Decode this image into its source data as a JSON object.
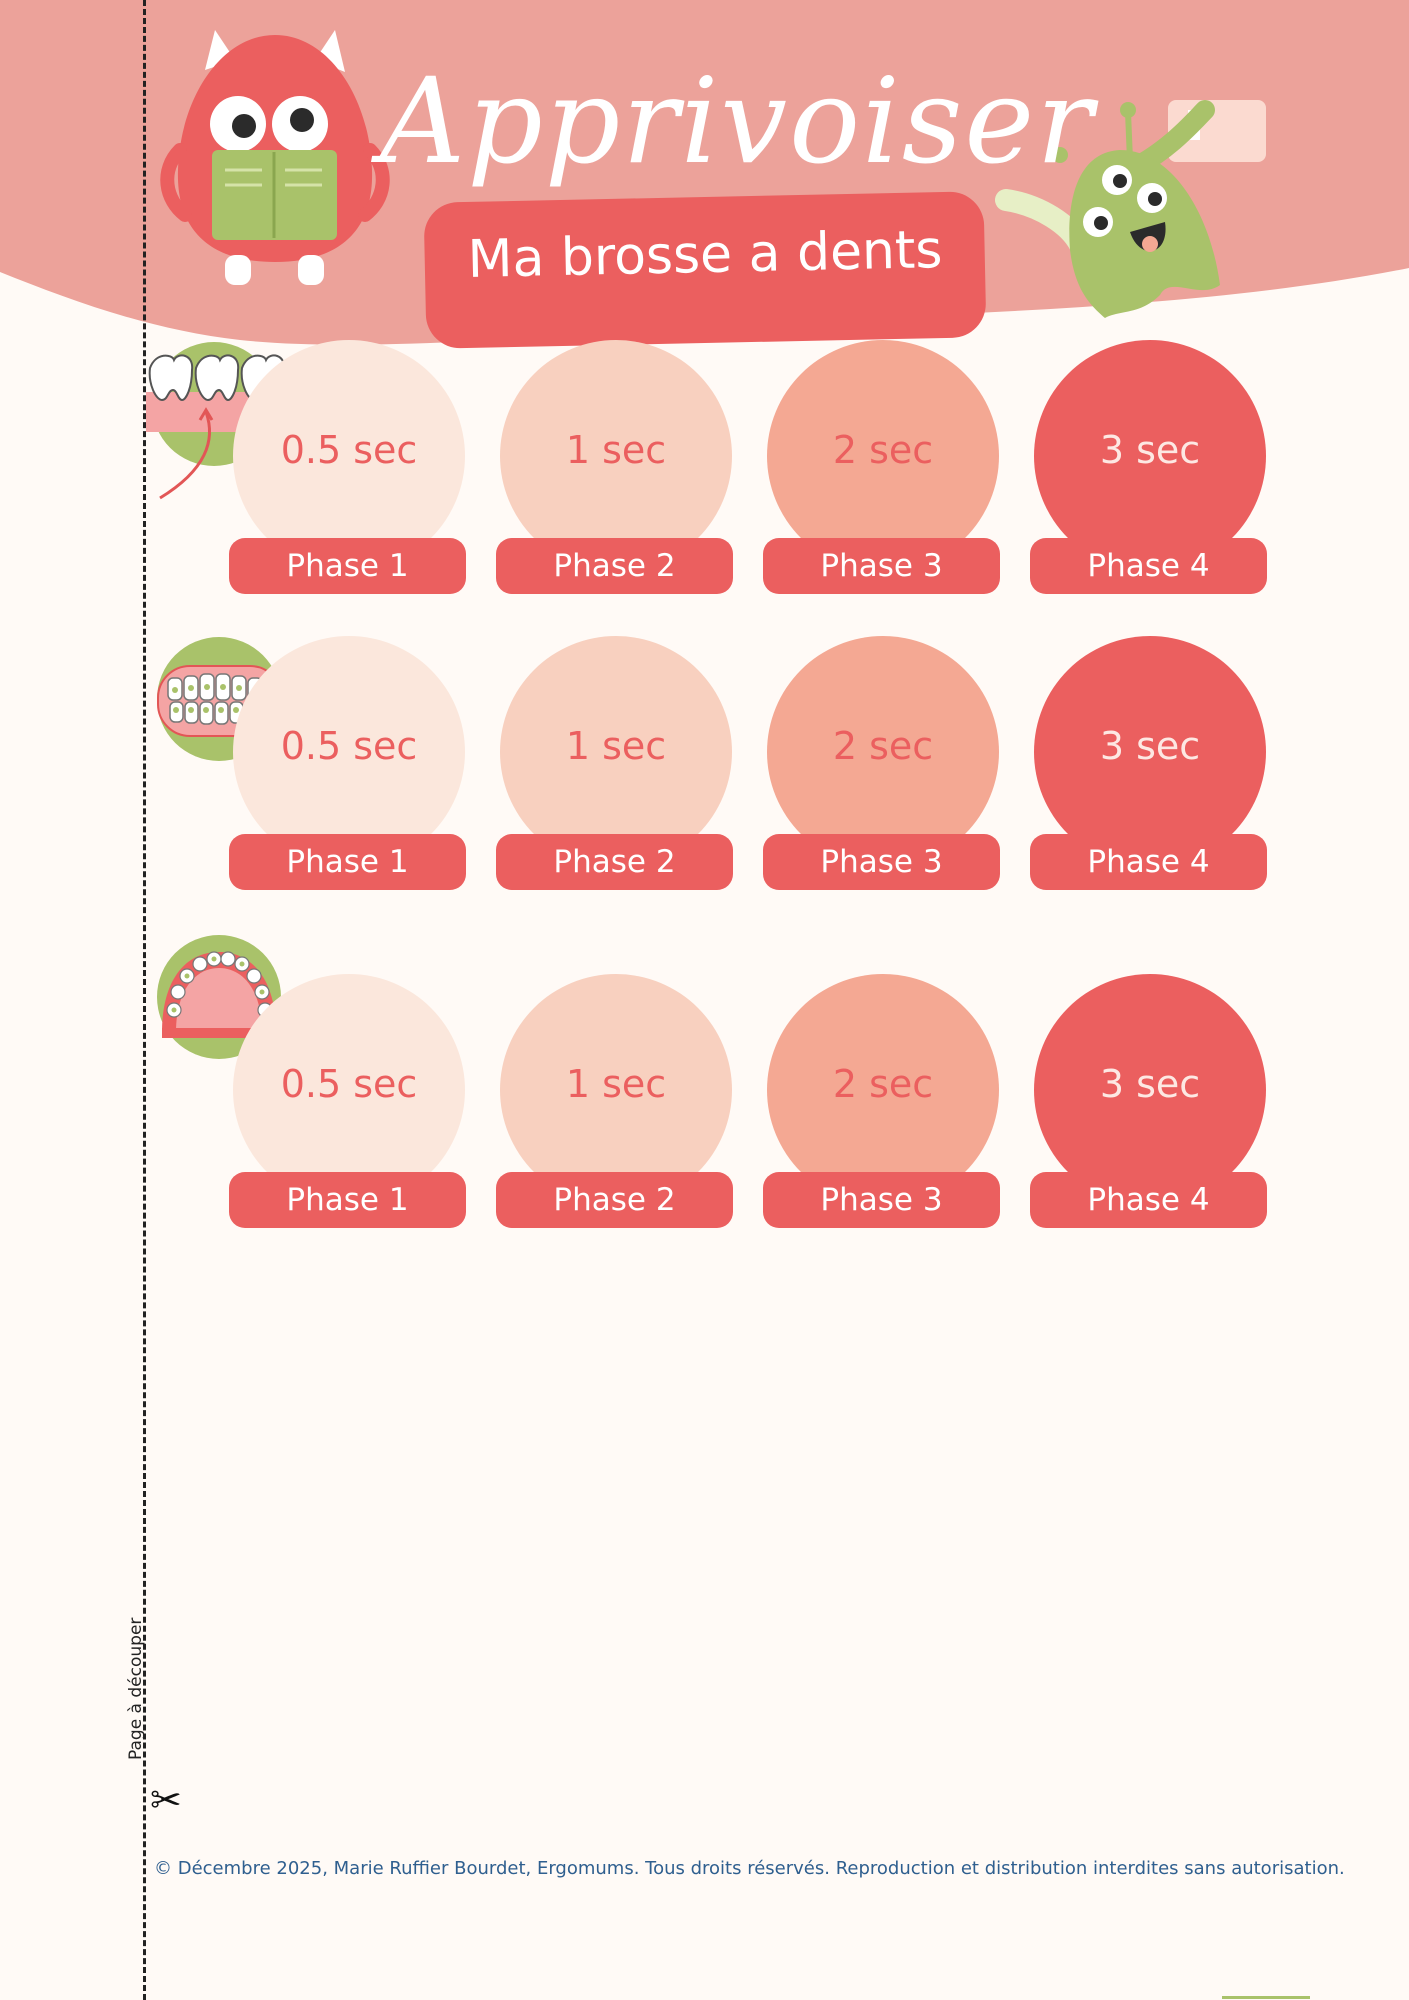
{
  "header": {
    "title": "Apprivoiser",
    "subtitle": "Ma brosse a dents"
  },
  "rows": [
    {
      "icon": "molar-teeth-icon",
      "cells": [
        {
          "time": "0.5 sec",
          "phase": "Phase 1",
          "color": "#fbe7dc"
        },
        {
          "time": "1 sec",
          "phase": "Phase 2",
          "color": "#f8d0bf"
        },
        {
          "time": "2 sec",
          "phase": "Phase 3",
          "color": "#f4a893"
        },
        {
          "time": "3 sec",
          "phase": "Phase 4",
          "color": "#eb5f5f"
        }
      ]
    },
    {
      "icon": "front-teeth-icon",
      "cells": [
        {
          "time": "0.5 sec",
          "phase": "Phase 1",
          "color": "#fbe7dc"
        },
        {
          "time": "1 sec",
          "phase": "Phase 2",
          "color": "#f8d0bf"
        },
        {
          "time": "2 sec",
          "phase": "Phase 3",
          "color": "#f4a893"
        },
        {
          "time": "3 sec",
          "phase": "Phase 4",
          "color": "#eb5f5f"
        }
      ]
    },
    {
      "icon": "upper-palate-icon",
      "cells": [
        {
          "time": "0.5 sec",
          "phase": "Phase 1",
          "color": "#fbe7dc"
        },
        {
          "time": "1 sec",
          "phase": "Phase 2",
          "color": "#f8d0bf"
        },
        {
          "time": "2 sec",
          "phase": "Phase 3",
          "color": "#f4a893"
        },
        {
          "time": "3 sec",
          "phase": "Phase 4",
          "color": "#eb5f5f"
        }
      ]
    }
  ],
  "footer": {
    "cut_label": "Page à découper",
    "scissors": "✂",
    "copyright": "© Décembre 2025, Marie Ruffier Bourdet, Ergomums. Tous droits réservés. Reproduction et distribution interdites sans autorisation."
  },
  "colors": {
    "accent": "#eb5f5f",
    "header_bg": "#eca29a",
    "green": "#a9c26a",
    "page_bg": "#fffaf6"
  }
}
